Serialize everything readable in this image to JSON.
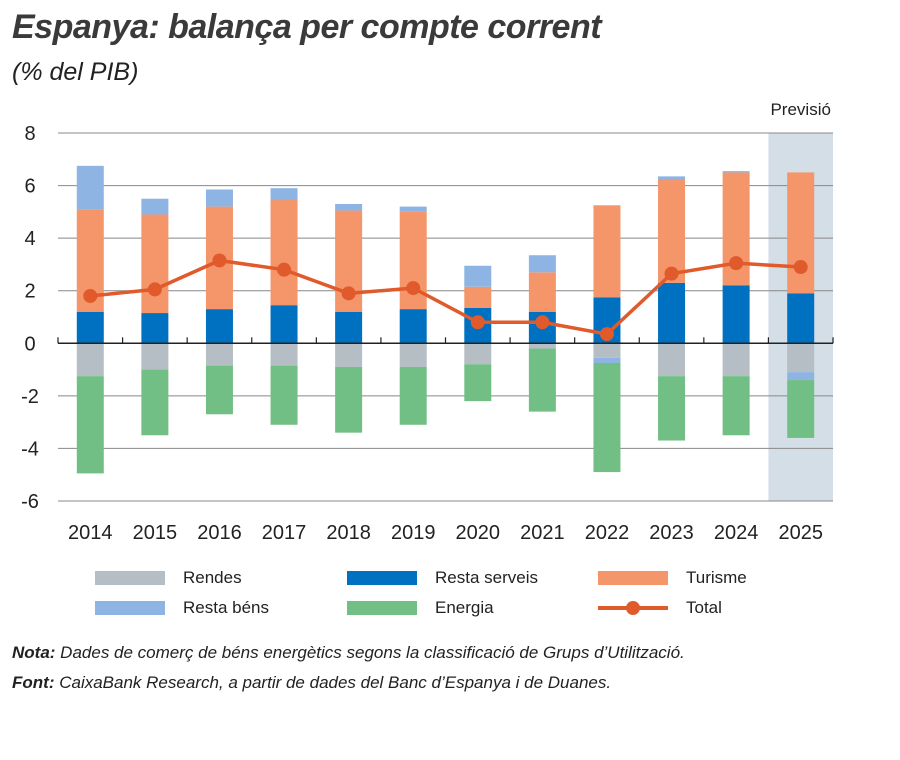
{
  "title": "Espanya: balança per compte corrent",
  "subtitle": "(% del PIB)",
  "forecast_label": "Previsió",
  "notes": {
    "nota_label": "Nota:",
    "nota_text": " Dades de comerç de béns energètics segons la classificació de Grups d’Utilització.",
    "font_label": "Font:",
    "font_text": " CaixaBank Research, a partir de dades del Banc d’Espanya i de Duanes."
  },
  "chart_data": {
    "type": "bar",
    "stacked": true,
    "title": "Espanya: balança per compte corrent",
    "ylabel": "(% del PIB)",
    "ylim": [
      -6,
      8
    ],
    "yticks": [
      8,
      6,
      4,
      2,
      0,
      -2,
      -4,
      -6
    ],
    "grid": true,
    "legend_placement": "bottom",
    "forecast_categories": [
      "2025"
    ],
    "categories": [
      "2014",
      "2015",
      "2016",
      "2017",
      "2018",
      "2019",
      "2020",
      "2021",
      "2022",
      "2023",
      "2024",
      "2025"
    ],
    "series": [
      {
        "name": "Rendes",
        "color": "#b5bec4",
        "values": [
          -1.25,
          -1.0,
          -0.85,
          -0.85,
          -0.9,
          -0.9,
          -0.8,
          -0.2,
          -0.55,
          -1.25,
          -1.25,
          -1.1
        ]
      },
      {
        "name": "Resta serveis",
        "color": "#0070c0",
        "values": [
          1.2,
          1.15,
          1.3,
          1.45,
          1.2,
          1.3,
          1.35,
          1.2,
          1.75,
          2.3,
          2.2,
          1.9
        ]
      },
      {
        "name": "Turisme",
        "color": "#f4956a",
        "values": [
          3.9,
          3.75,
          3.9,
          4.0,
          3.85,
          3.7,
          0.8,
          1.5,
          3.5,
          3.95,
          4.3,
          4.6
        ]
      },
      {
        "name": "Resta béns",
        "color": "#8db4e2",
        "values": [
          1.65,
          0.6,
          0.65,
          0.45,
          0.25,
          0.2,
          0.8,
          0.65,
          -0.2,
          0.1,
          0.05,
          -0.3
        ]
      },
      {
        "name": "Energia",
        "color": "#72bf85",
        "values": [
          -3.7,
          -2.5,
          -1.85,
          -2.25,
          -2.5,
          -2.2,
          -1.4,
          -2.4,
          -4.15,
          -2.45,
          -2.25,
          -2.2
        ]
      },
      {
        "name": "Total",
        "type": "line",
        "color": "#e05a2b",
        "values": [
          1.8,
          2.05,
          3.15,
          2.8,
          1.9,
          2.1,
          0.8,
          0.8,
          0.35,
          2.65,
          3.05,
          2.9
        ]
      }
    ]
  }
}
